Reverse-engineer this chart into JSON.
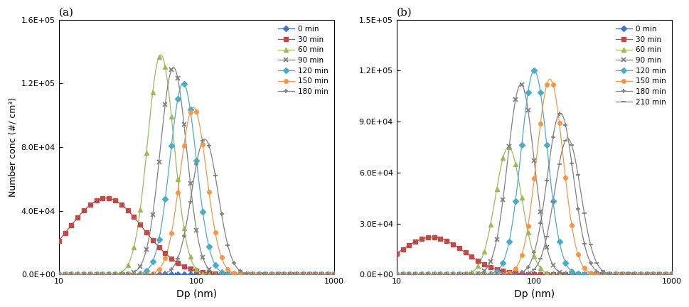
{
  "panel_a": {
    "title": "(a)",
    "ylim": [
      0,
      160000.0
    ],
    "yticks": [
      0,
      40000.0,
      80000.0,
      120000.0,
      160000.0
    ],
    "ytick_labels": [
      "0.0E+00",
      "4.0E+04",
      "8.0E+04",
      "1.2E+05",
      "1.6E+05"
    ],
    "series": [
      {
        "label": "0 min",
        "color": "#4472C4",
        "marker": "D",
        "marker_size": 4,
        "peak": 0,
        "mode": 10,
        "sigma": 0.3,
        "special": false
      },
      {
        "label": "30 min",
        "color": "#BE4B48",
        "marker": "s",
        "marker_size": 4,
        "peak": 48000,
        "mode": 22,
        "sigma": 0.62,
        "special": true
      },
      {
        "label": "60 min",
        "color": "#9BBB59",
        "marker": "^",
        "marker_size": 4,
        "peak": 138000,
        "mode": 55,
        "sigma": 0.22,
        "special": false
      },
      {
        "label": "90 min",
        "color": "#808080",
        "marker": "x",
        "marker_size": 5,
        "peak": 130000,
        "mode": 68,
        "sigma": 0.22,
        "special": false
      },
      {
        "label": "120 min",
        "color": "#4BACC6",
        "marker": "D",
        "marker_size": 4,
        "peak": 120000,
        "mode": 80,
        "sigma": 0.22,
        "special": false
      },
      {
        "label": "150 min",
        "color": "#F79646",
        "marker": "o",
        "marker_size": 4,
        "peak": 105000,
        "mode": 95,
        "sigma": 0.22,
        "special": false
      },
      {
        "label": "180 min",
        "color": "#808080",
        "marker": "+",
        "marker_size": 5,
        "peak": 85000,
        "mode": 115,
        "sigma": 0.22,
        "special": false
      }
    ]
  },
  "panel_b": {
    "title": "(b)",
    "ylim": [
      0,
      150000.0
    ],
    "yticks": [
      0,
      30000.0,
      60000.0,
      90000.0,
      120000.0,
      150000.0
    ],
    "ytick_labels": [
      "0.0E+00",
      "3.0E+04",
      "6.0E+04",
      "9.0E+04",
      "1.2E+05",
      "1.5E+05"
    ],
    "series": [
      {
        "label": "0 min",
        "color": "#4472C4",
        "marker": "D",
        "marker_size": 4,
        "peak": 0,
        "mode": 10,
        "sigma": 0.3,
        "special": false
      },
      {
        "label": "30 min",
        "color": "#BE4B48",
        "marker": "s",
        "marker_size": 4,
        "peak": 22000,
        "mode": 18,
        "sigma": 0.55,
        "special": true
      },
      {
        "label": "60 min",
        "color": "#9BBB59",
        "marker": "^",
        "marker_size": 4,
        "peak": 75000,
        "mode": 65,
        "sigma": 0.22,
        "special": false
      },
      {
        "label": "90 min",
        "color": "#808080",
        "marker": "x",
        "marker_size": 5,
        "peak": 112000,
        "mode": 80,
        "sigma": 0.22,
        "special": false
      },
      {
        "label": "120 min",
        "color": "#4BACC6",
        "marker": "D",
        "marker_size": 4,
        "peak": 120000,
        "mode": 100,
        "sigma": 0.22,
        "special": false
      },
      {
        "label": "150 min",
        "color": "#F79646",
        "marker": "o",
        "marker_size": 4,
        "peak": 115000,
        "mode": 130,
        "sigma": 0.22,
        "special": false
      },
      {
        "label": "180 min",
        "color": "#808080",
        "marker": "+",
        "marker_size": 5,
        "peak": 95000,
        "mode": 155,
        "sigma": 0.22,
        "special": false
      },
      {
        "label": "210 min",
        "color": "#808080",
        "marker": "_",
        "marker_size": 5,
        "peak": 80000,
        "mode": 175,
        "sigma": 0.22,
        "special": false
      }
    ]
  },
  "xlabel": "Dp (nm)",
  "ylabel": "Number conc (#/ cm³)",
  "xlim": [
    10,
    1000
  ],
  "background_color": "#ffffff"
}
